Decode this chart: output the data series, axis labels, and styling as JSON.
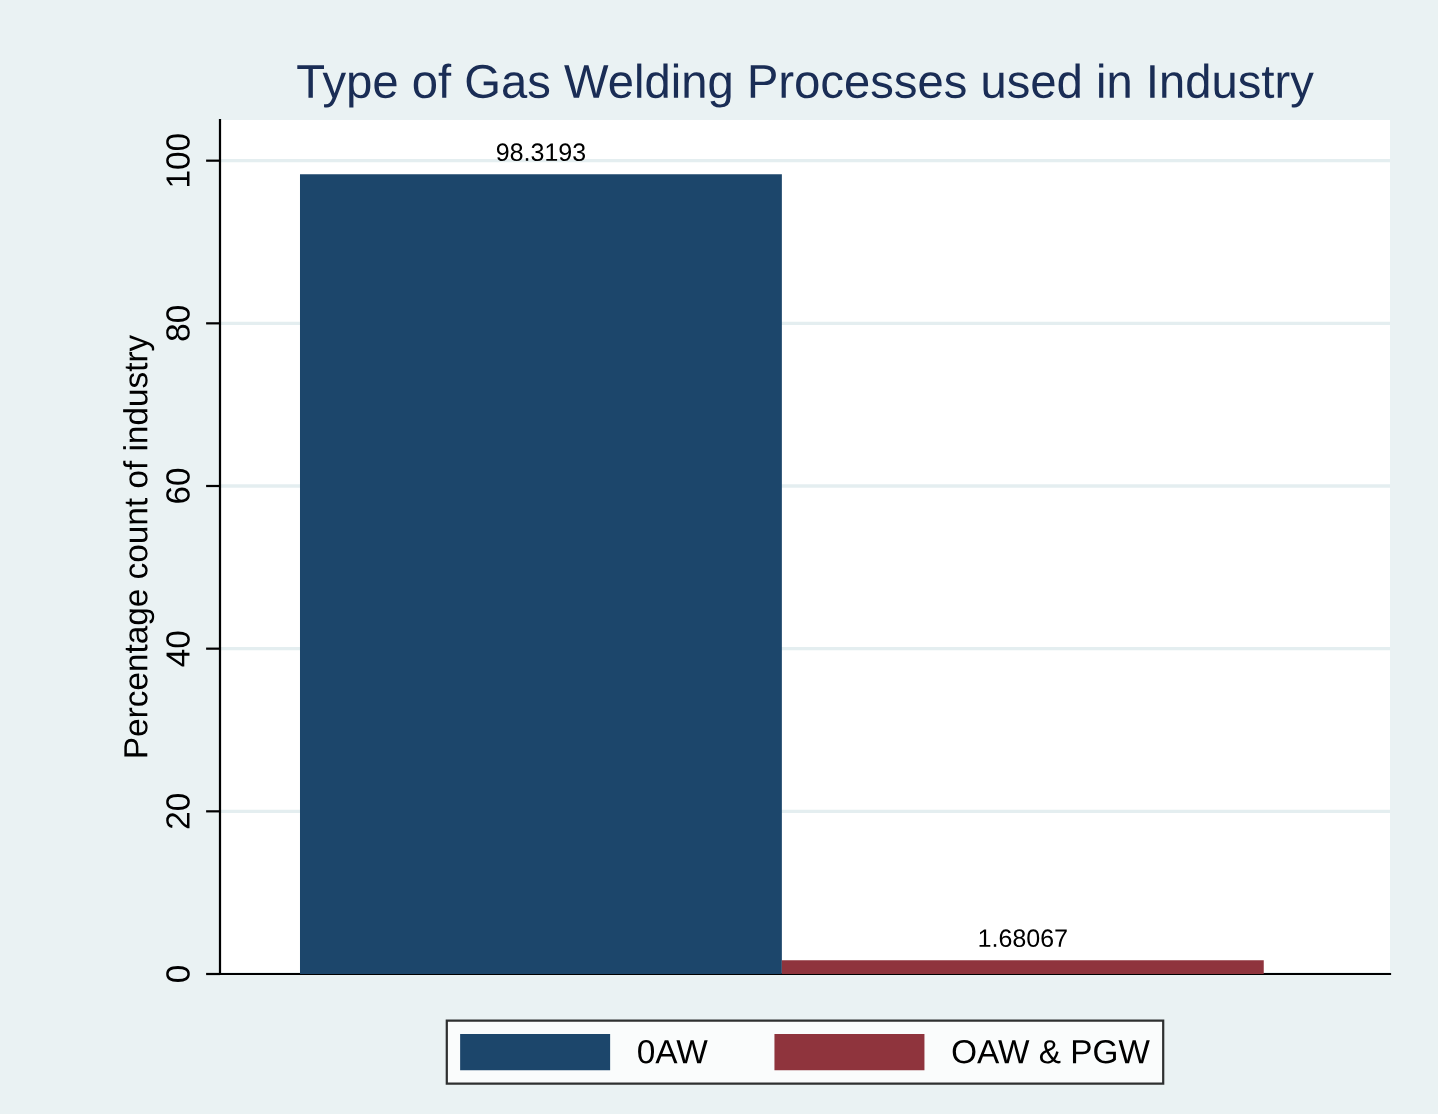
{
  "chart_data": {
    "type": "bar",
    "title": "Type of Gas Welding Processes used in Industry",
    "ylabel": "Percentage count of industry",
    "categories": [
      null
    ],
    "series": [
      {
        "name": "0AW",
        "color": "#1c466b",
        "values": [
          98.3193
        ]
      },
      {
        "name": "OAW & PGW",
        "color": "#8f343d",
        "values": [
          1.68067
        ]
      }
    ],
    "ylim": [
      0,
      105
    ],
    "yticks": [
      0,
      20,
      40,
      60,
      80,
      100
    ],
    "grid": "y",
    "legend": "bottom",
    "data_labels": true,
    "tick_labels": "y"
  }
}
